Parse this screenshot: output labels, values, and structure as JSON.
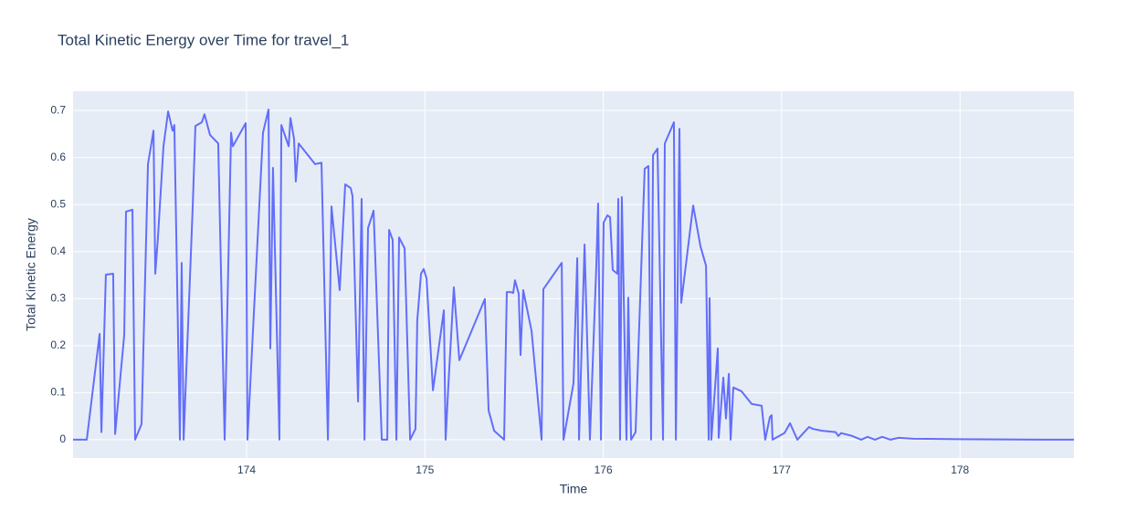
{
  "chart_data": {
    "type": "line",
    "title": "Total Kinetic Energy over Time for travel_1",
    "x_label": "Time",
    "y_label": "Total Kinetic Energy",
    "color": "#636efa",
    "grid": true,
    "xlim": [
      173.027,
      178.639
    ],
    "ylim": [
      -0.039,
      0.741
    ],
    "xticks": [
      174,
      175,
      176,
      177,
      178
    ],
    "yticks": [
      0,
      0.1,
      0.2,
      0.3,
      0.4,
      0.5,
      0.6,
      0.7
    ],
    "x": [
      173.027,
      173.104,
      173.176,
      173.186,
      173.211,
      173.252,
      173.263,
      173.314,
      173.324,
      173.36,
      173.375,
      173.411,
      173.447,
      173.478,
      173.488,
      173.503,
      173.534,
      173.56,
      173.585,
      173.595,
      173.626,
      173.636,
      173.647,
      173.698,
      173.713,
      173.749,
      173.764,
      173.795,
      173.841,
      173.877,
      173.913,
      173.923,
      173.995,
      174.005,
      174.092,
      174.123,
      174.133,
      174.148,
      174.184,
      174.195,
      174.236,
      174.246,
      174.266,
      174.276,
      174.292,
      174.384,
      174.42,
      174.456,
      174.476,
      174.522,
      174.553,
      174.584,
      174.594,
      174.625,
      174.645,
      174.661,
      174.681,
      174.712,
      174.758,
      174.789,
      174.799,
      174.819,
      174.84,
      174.855,
      174.886,
      174.917,
      174.947,
      174.957,
      174.978,
      174.993,
      175.009,
      175.045,
      175.106,
      175.116,
      175.132,
      175.162,
      175.193,
      175.336,
      175.357,
      175.388,
      175.444,
      175.459,
      175.48,
      175.495,
      175.505,
      175.526,
      175.536,
      175.551,
      175.598,
      175.654,
      175.664,
      175.767,
      175.777,
      175.833,
      175.854,
      175.864,
      175.895,
      175.925,
      175.961,
      175.971,
      175.987,
      176.002,
      176.023,
      176.038,
      176.053,
      176.079,
      176.084,
      176.094,
      176.104,
      176.13,
      176.14,
      176.156,
      176.181,
      176.232,
      176.253,
      176.268,
      176.279,
      176.304,
      176.335,
      176.345,
      176.396,
      176.407,
      176.427,
      176.437,
      176.504,
      176.545,
      176.576,
      176.591,
      176.596,
      176.606,
      176.642,
      176.647,
      176.673,
      176.688,
      176.704,
      176.714,
      176.729,
      176.775,
      176.832,
      176.888,
      176.908,
      176.934,
      176.944,
      176.949,
      177.016,
      177.047,
      177.088,
      177.154,
      177.175,
      177.226,
      177.303,
      177.318,
      177.333,
      177.395,
      177.446,
      177.482,
      177.523,
      177.564,
      177.61,
      177.656,
      177.738,
      177.994,
      178.506,
      178.639
    ],
    "values": [
      0,
      0,
      0.225,
      0.016,
      0.351,
      0.353,
      0.012,
      0.223,
      0.485,
      0.489,
      0,
      0.033,
      0.586,
      0.657,
      0.353,
      0.43,
      0.624,
      0.698,
      0.657,
      0.669,
      0,
      0.376,
      0,
      0.496,
      0.667,
      0.675,
      0.692,
      0.648,
      0.63,
      0,
      0.653,
      0.624,
      0.673,
      0,
      0.653,
      0.702,
      0.194,
      0.578,
      0,
      0.669,
      0.624,
      0.684,
      0.64,
      0.549,
      0.63,
      0.586,
      0.589,
      0,
      0.496,
      0.318,
      0.543,
      0.535,
      0.518,
      0.081,
      0.512,
      0,
      0.45,
      0.487,
      0,
      0,
      0.446,
      0.425,
      0,
      0.43,
      0.407,
      0,
      0.023,
      0.254,
      0.353,
      0.363,
      0.343,
      0.105,
      0.275,
      0,
      0.12,
      0.324,
      0.169,
      0.299,
      0.062,
      0.019,
      0,
      0.314,
      0.314,
      0.312,
      0.339,
      0.31,
      0.18,
      0.318,
      0.231,
      0,
      0.32,
      0.376,
      0,
      0.12,
      0.386,
      0,
      0.415,
      0,
      0.37,
      0.502,
      0,
      0.462,
      0.477,
      0.473,
      0.361,
      0.353,
      0.512,
      0,
      0.516,
      0,
      0.302,
      0,
      0.016,
      0.576,
      0.582,
      0,
      0.605,
      0.619,
      0,
      0.63,
      0.675,
      0,
      0.661,
      0.291,
      0.498,
      0.411,
      0.37,
      0,
      0.301,
      0,
      0.194,
      0.004,
      0.132,
      0.045,
      0.14,
      0,
      0.111,
      0.103,
      0.076,
      0.072,
      0,
      0.048,
      0.052,
      0,
      0.014,
      0.035,
      0,
      0.027,
      0.023,
      0.019,
      0.016,
      0.008,
      0.014,
      0.008,
      0,
      0.006,
      0,
      0.006,
      0,
      0.004,
      0.002,
      0.001,
      0,
      0
    ]
  }
}
